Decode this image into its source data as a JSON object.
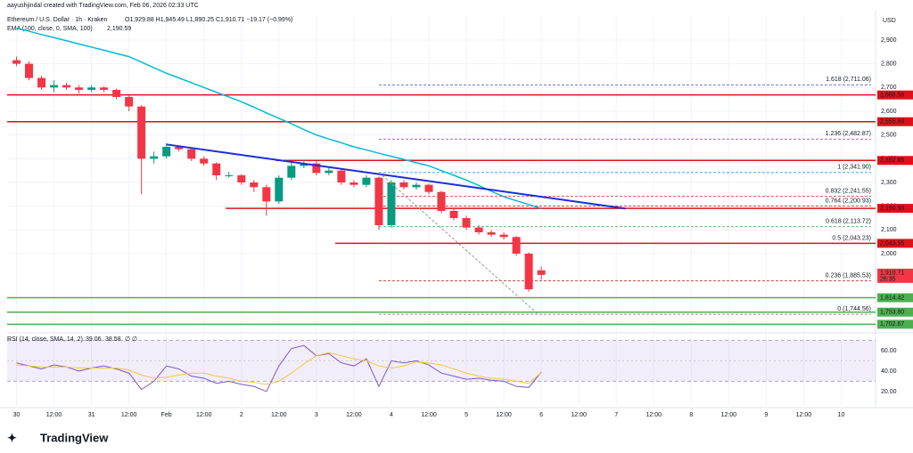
{
  "header": {
    "credit": "aayushjindal created with TradingView.com, Feb 06, 2026 02:33 UTC",
    "symbol": "Ethereum / U.S. Dollar · 1h · Kraken",
    "ohlc": "O1,929.88 H1,945.49 L1,890.25 C1,910.71 −19.17 (−0.99%)",
    "currency": "USD",
    "logo": "TradingView"
  },
  "chart_data": [
    {
      "type": "candlestick",
      "up_color": "#089981",
      "down_color": "#f23645",
      "x": [
        0,
        4,
        8,
        12,
        16,
        20,
        24,
        28,
        32,
        36,
        40,
        44,
        48,
        52,
        56,
        60,
        64,
        68,
        72,
        76,
        80,
        84,
        88,
        92,
        96,
        100,
        104,
        108,
        112,
        116,
        120,
        124,
        128,
        132,
        136,
        140,
        144,
        148,
        152,
        156,
        160,
        164,
        168
      ],
      "open": [
        2815,
        2800,
        2740,
        2700,
        2710,
        2700,
        2690,
        2700,
        2690,
        2660,
        2620,
        2400,
        2410,
        2450,
        2440,
        2400,
        2380,
        2330,
        2330,
        2300,
        2280,
        2220,
        2320,
        2370,
        2380,
        2340,
        2350,
        2300,
        2290,
        2320,
        2120,
        2300,
        2280,
        2290,
        2260,
        2180,
        2150,
        2110,
        2090,
        2080,
        2070,
        2000,
        1929.88
      ],
      "high": [
        2830,
        2810,
        2750,
        2730,
        2720,
        2710,
        2710,
        2705,
        2695,
        2665,
        2625,
        2430,
        2465,
        2455,
        2445,
        2410,
        2385,
        2345,
        2335,
        2310,
        2290,
        2330,
        2385,
        2395,
        2390,
        2360,
        2355,
        2310,
        2330,
        2325,
        2310,
        2310,
        2300,
        2295,
        2265,
        2190,
        2160,
        2120,
        2100,
        2090,
        2075,
        2005,
        1945.49
      ],
      "low": [
        2790,
        2730,
        2690,
        2680,
        2690,
        2675,
        2680,
        2680,
        2650,
        2600,
        2250,
        2380,
        2400,
        2430,
        2390,
        2370,
        2310,
        2320,
        2290,
        2260,
        2160,
        2210,
        2310,
        2360,
        2330,
        2330,
        2290,
        2280,
        2280,
        2100,
        2110,
        2270,
        2270,
        2250,
        2170,
        2140,
        2100,
        2080,
        2070,
        2060,
        1990,
        1840,
        1890.25
      ],
      "close": [
        2800,
        2740,
        2700,
        2710,
        2700,
        2690,
        2700,
        2690,
        2660,
        2620,
        2400,
        2410,
        2450,
        2440,
        2400,
        2380,
        2330,
        2330,
        2300,
        2280,
        2220,
        2320,
        2370,
        2380,
        2340,
        2350,
        2300,
        2290,
        2320,
        2120,
        2300,
        2280,
        2290,
        2260,
        2180,
        2150,
        2110,
        2090,
        2080,
        2070,
        2000,
        1850,
        1910.71
      ],
      "close_label": "1,910.71",
      "countdown": "26:35",
      "ema": {
        "name": "EMA (100, close, 0, SMA, 100)",
        "last_label": "2,190.59",
        "color": "#00bcd4",
        "values": [
          2950,
          2937,
          2923,
          2910,
          2897,
          2883,
          2870,
          2857,
          2843,
          2830,
          2807,
          2783,
          2760,
          2740,
          2720,
          2700,
          2680,
          2660,
          2640,
          2617,
          2593,
          2570,
          2547,
          2523,
          2500,
          2483,
          2467,
          2450,
          2437,
          2423,
          2410,
          2397,
          2383,
          2370,
          2350,
          2330,
          2310,
          2287,
          2263,
          2240,
          2223,
          2207,
          2190.59
        ]
      },
      "xlim": [
        -3,
        275
      ],
      "ylim": [
        1674,
        3001
      ],
      "xticks": [
        {
          "value": 0,
          "label": "30"
        },
        {
          "value": 12,
          "label": "12:00"
        },
        {
          "value": 24,
          "label": "31"
        },
        {
          "value": 36,
          "label": "12:00"
        },
        {
          "value": 48,
          "label": "Feb"
        },
        {
          "value": 60,
          "label": "12:00"
        },
        {
          "value": 72,
          "label": "2"
        },
        {
          "value": 84,
          "label": "12:00"
        },
        {
          "value": 96,
          "label": "3"
        },
        {
          "value": 108,
          "label": "12:00"
        },
        {
          "value": 120,
          "label": "4"
        },
        {
          "value": 132,
          "label": "12:00"
        },
        {
          "value": 144,
          "label": "5"
        },
        {
          "value": 156,
          "label": "12:00"
        },
        {
          "value": 168,
          "label": "6"
        },
        {
          "value": 180,
          "label": "12:00"
        },
        {
          "value": 192,
          "label": "7"
        },
        {
          "value": 204,
          "label": "12:00"
        },
        {
          "value": 216,
          "label": "8"
        },
        {
          "value": 228,
          "label": "12:00"
        },
        {
          "value": 240,
          "label": "9"
        },
        {
          "value": 252,
          "label": "12:00"
        },
        {
          "value": 264,
          "label": "10"
        }
      ],
      "yticks": [
        {
          "value": 2000,
          "label": "2,000"
        },
        {
          "value": 2100,
          "label": "2,100"
        },
        {
          "value": 2200,
          "label": "2,200"
        },
        {
          "value": 2300,
          "label": "2,300"
        },
        {
          "value": 2400,
          "label": "2,400"
        },
        {
          "value": 2500,
          "label": "2,500"
        },
        {
          "value": 2600,
          "label": "2,600"
        },
        {
          "value": 2700,
          "label": "2,700"
        },
        {
          "value": 2800,
          "label": "2,800"
        },
        {
          "value": 2900,
          "label": "2,900"
        }
      ],
      "levels": [
        {
          "value": 2668.56,
          "label": "2,668.56",
          "color": "#e0101a",
          "x0": -3
        },
        {
          "value": 2555.84,
          "label": "2,555.84",
          "color": "#e0101a",
          "x0": -3
        },
        {
          "value": 2392.65,
          "label": "2,392.65",
          "color": "#e0101a",
          "x0": 83
        },
        {
          "value": 2190.93,
          "label": "2,190.93",
          "color": "#e0101a",
          "x0": 67
        },
        {
          "value": 2043.55,
          "label": "2,043.55",
          "color": "#e0101a",
          "x0": 102
        },
        {
          "value": 1814.42,
          "label": "1,814.42",
          "color": "#4caf50",
          "x0": -3
        },
        {
          "value": 1753.8,
          "label": "1,753.80",
          "color": "#4caf50",
          "x0": -3
        },
        {
          "value": 1702.67,
          "label": "1,702.67",
          "color": "#4caf50",
          "x0": -3
        }
      ],
      "fib_start": 116,
      "fib": [
        {
          "value": 2711.06,
          "label": "1.618 (2,711.06)",
          "color": "#3f51b5"
        },
        {
          "value": 2482.87,
          "label": "1.236 (2,482.87)",
          "color": "#9c27b0"
        },
        {
          "value": 2341.9,
          "label": "1 (2,341.90)",
          "color": "#2196f3"
        },
        {
          "value": 2241.55,
          "label": "0.832 (2,241.55)",
          "color": "#e91e1e"
        },
        {
          "value": 2200.93,
          "label": "0.764 (2,200.93)",
          "color": "#e91e1e"
        },
        {
          "value": 2113.72,
          "label": "0.618 (2,113.72)",
          "color": "#4caf50"
        },
        {
          "value": 2043.23,
          "label": "0.5 (2,043.23)",
          "color": "#555555"
        },
        {
          "value": 1885.53,
          "label": "0.236 (1,885.53)",
          "color": "#c0392b"
        },
        {
          "value": 1744.56,
          "label": "0 (1,744.56)",
          "color": "#888888"
        }
      ],
      "trendline": {
        "color": "#1a2ed8",
        "x": [
          48,
          195
        ],
        "y": [
          2460,
          2190
        ]
      },
      "fib_diagonal": {
        "color": "#999999",
        "x": [
          116,
          167
        ],
        "y": [
          2341.9,
          1744.56
        ]
      }
    },
    {
      "type": "line",
      "name": "RSI (14, close, SMA, 14, 2)",
      "extra": "∅ ∅",
      "ylim": [
        6,
        75.6
      ],
      "band": [
        30,
        70
      ],
      "mid": 50,
      "yticks": [
        {
          "value": 20,
          "label": "20.00"
        },
        {
          "value": 40,
          "label": "40.00"
        },
        {
          "value": 60,
          "label": "60.00"
        }
      ],
      "series": [
        {
          "name": "RSI",
          "color": "#7e57c2",
          "values": [
            48,
            45,
            42,
            46,
            44,
            40,
            43,
            45,
            42,
            38,
            22,
            30,
            45,
            42,
            35,
            33,
            28,
            30,
            27,
            25,
            20,
            45,
            62,
            65,
            55,
            57,
            48,
            45,
            52,
            25,
            50,
            48,
            50,
            46,
            38,
            35,
            32,
            33,
            31,
            30,
            25,
            24,
            39.06
          ]
        },
        {
          "name": "SMA",
          "color": "#f4c542",
          "values": [
            46,
            45,
            44,
            44,
            44,
            43,
            43,
            43,
            43,
            41,
            36,
            33,
            34,
            36,
            38,
            38,
            35,
            33,
            30,
            29,
            27,
            30,
            38,
            47,
            55,
            58,
            55,
            52,
            50,
            45,
            43,
            45,
            49,
            48,
            46,
            42,
            38,
            35,
            33,
            32,
            30,
            28,
            38.58
          ]
        }
      ]
    }
  ]
}
